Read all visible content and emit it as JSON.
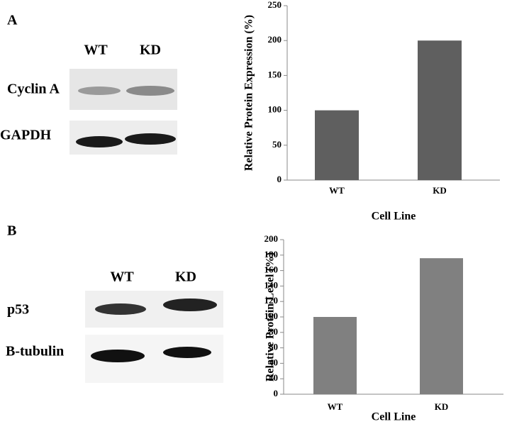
{
  "panel_labels": [
    "A",
    "B"
  ],
  "blots": [
    {
      "lanes": [
        "WT",
        "KD"
      ],
      "rows": [
        "Cyclin A",
        "GAPDH"
      ]
    },
    {
      "lanes": [
        "WT",
        "KD"
      ],
      "rows": [
        "p53",
        "B-tubulin"
      ]
    }
  ],
  "chart_data": [
    {
      "type": "bar",
      "y_label": "Relative Protein Expression (%)",
      "x_label": "Cell Line",
      "categories": [
        "WT",
        "KD"
      ],
      "values": [
        100,
        200
      ],
      "color": "#5f5f5f",
      "ylim": [
        0,
        250
      ],
      "yticks": [
        0,
        50,
        100,
        150,
        200,
        250
      ]
    },
    {
      "type": "bar",
      "y_label": "Relative Protein Level (%)",
      "x_label": "Cell Line",
      "categories": [
        "WT",
        "KD"
      ],
      "values": [
        100,
        176
      ],
      "color": "#808080",
      "ylim": [
        0,
        200
      ],
      "yticks": [
        0,
        20,
        40,
        60,
        80,
        100,
        120,
        140,
        160,
        180,
        200
      ]
    }
  ]
}
